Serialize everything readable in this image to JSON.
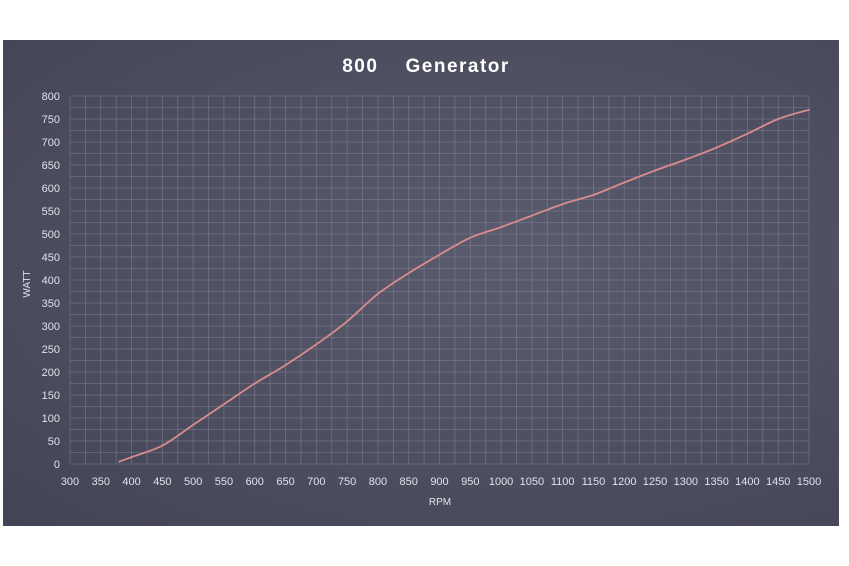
{
  "chart_data": {
    "type": "line",
    "title": "800    Generator",
    "xlabel": "RPM",
    "ylabel": "WATT",
    "xlim": [
      300,
      1500
    ],
    "ylim": [
      0,
      800
    ],
    "x_ticks": [
      300,
      350,
      400,
      450,
      500,
      550,
      600,
      650,
      700,
      750,
      800,
      850,
      900,
      950,
      1000,
      1050,
      1100,
      1150,
      1200,
      1250,
      1300,
      1350,
      1400,
      1450,
      1500
    ],
    "y_ticks": [
      0,
      50,
      100,
      150,
      200,
      250,
      300,
      350,
      400,
      450,
      500,
      550,
      600,
      650,
      700,
      750,
      800
    ],
    "grid": true,
    "series": [
      {
        "color": "#d98c8c",
        "x": [
          380,
          400,
          450,
          500,
          550,
          600,
          650,
          700,
          750,
          800,
          850,
          900,
          950,
          1000,
          1050,
          1100,
          1150,
          1200,
          1250,
          1300,
          1350,
          1400,
          1450,
          1500
        ],
        "y": [
          5,
          15,
          40,
          85,
          130,
          175,
          215,
          260,
          310,
          370,
          415,
          455,
          492,
          515,
          540,
          565,
          585,
          612,
          638,
          662,
          688,
          718,
          750,
          770
        ]
      }
    ]
  }
}
